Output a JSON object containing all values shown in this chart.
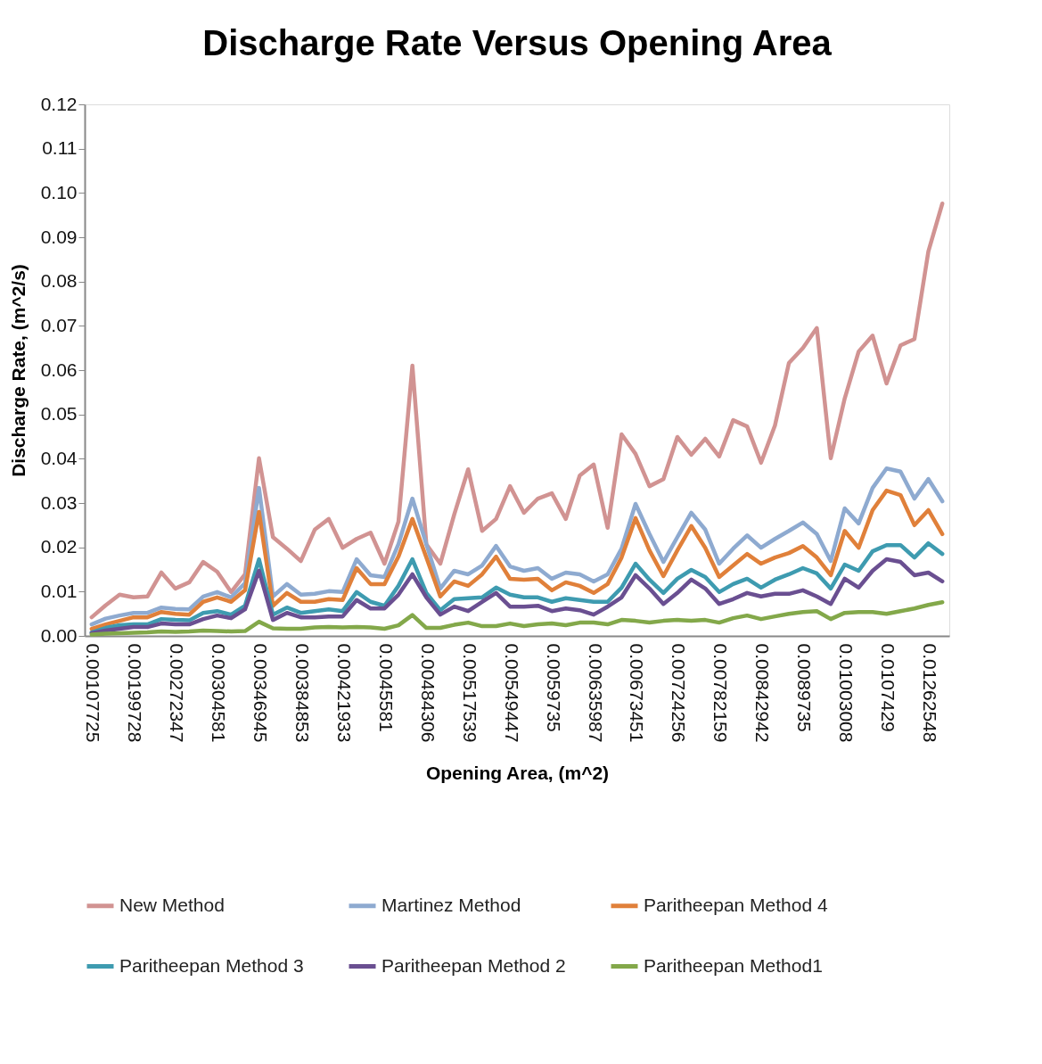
{
  "chart_data": {
    "type": "line",
    "title": "Discharge Rate Versus Opening Area",
    "xlabel": "Opening Area, (m^2)",
    "ylabel": "Discharge Rate, (m^2/s)",
    "categories": [
      "0.00107725",
      null,
      null,
      "0.00199728",
      null,
      null,
      "0.00272347",
      null,
      null,
      "0.00304581",
      null,
      null,
      "0.00346945",
      null,
      null,
      "0.00384853",
      null,
      null,
      "0.00421933",
      null,
      null,
      "0.0045581",
      null,
      null,
      "0.00484306",
      null,
      null,
      "0.00517539",
      null,
      null,
      "0.00549447",
      null,
      null,
      "0.0059735",
      null,
      null,
      "0.00635987",
      null,
      null,
      "0.00673451",
      null,
      null,
      "0.00724256",
      null,
      null,
      "0.00782159",
      null,
      null,
      "0.00842942",
      null,
      null,
      "0.0089735",
      null,
      null,
      "0.01003008",
      null,
      null,
      "0.0107429",
      null,
      null,
      "0.01262548",
      null
    ],
    "series": [
      {
        "name": "New Method",
        "color": "#d19392",
        "values": [
          0.0042,
          0.0069,
          0.0093,
          0.0087,
          0.0089,
          0.0143,
          0.0107,
          0.0121,
          0.0167,
          0.0145,
          0.0099,
          0.0139,
          0.0401,
          0.0223,
          0.0197,
          0.0169,
          0.024,
          0.0264,
          0.0199,
          0.0219,
          0.0233,
          0.0163,
          0.0258,
          0.061,
          0.0207,
          0.0163,
          0.0274,
          0.0376,
          0.0237,
          0.0264,
          0.0338,
          0.0278,
          0.031,
          0.0322,
          0.0264,
          0.0362,
          0.0387,
          0.0244,
          0.0455,
          0.0411,
          0.0338,
          0.0354,
          0.0449,
          0.0409,
          0.0445,
          0.0405,
          0.0487,
          0.0473,
          0.0391,
          0.0475,
          0.0616,
          0.065,
          0.0695,
          0.0401,
          0.0536,
          0.0642,
          0.0678,
          0.057,
          0.0656,
          0.067,
          0.0868,
          0.0976
        ]
      },
      {
        "name": "Martinez Method",
        "color": "#8eaad0",
        "values": [
          0.0026,
          0.0039,
          0.0046,
          0.0052,
          0.0052,
          0.0064,
          0.0061,
          0.006,
          0.0089,
          0.0099,
          0.0087,
          0.0119,
          0.0334,
          0.0089,
          0.0117,
          0.0093,
          0.0095,
          0.0101,
          0.0099,
          0.0173,
          0.0137,
          0.0133,
          0.0207,
          0.031,
          0.0207,
          0.0107,
          0.0147,
          0.0139,
          0.0159,
          0.0203,
          0.0157,
          0.0147,
          0.0153,
          0.0129,
          0.0143,
          0.0139,
          0.0123,
          0.0139,
          0.0197,
          0.0298,
          0.023,
          0.0167,
          0.0223,
          0.0278,
          0.024,
          0.0163,
          0.0197,
          0.0227,
          0.0199,
          0.0219,
          0.0237,
          0.0256,
          0.023,
          0.0169,
          0.0288,
          0.0254,
          0.0334,
          0.0378,
          0.0371,
          0.031,
          0.0354,
          0.0304
        ]
      },
      {
        "name": "Paritheepan Method 4",
        "color": "#e0803a",
        "values": [
          0.0016,
          0.0026,
          0.0034,
          0.0042,
          0.0042,
          0.0054,
          0.005,
          0.0048,
          0.0077,
          0.0087,
          0.0077,
          0.0103,
          0.028,
          0.0068,
          0.0097,
          0.0077,
          0.0077,
          0.0083,
          0.0081,
          0.0153,
          0.0117,
          0.0117,
          0.0179,
          0.0264,
          0.0177,
          0.0089,
          0.0123,
          0.0113,
          0.0139,
          0.0179,
          0.0129,
          0.0127,
          0.0129,
          0.0103,
          0.0121,
          0.0113,
          0.0097,
          0.0117,
          0.0177,
          0.0266,
          0.0193,
          0.0135,
          0.0193,
          0.0248,
          0.0199,
          0.0133,
          0.0159,
          0.0185,
          0.0163,
          0.0177,
          0.0187,
          0.0203,
          0.0177,
          0.0137,
          0.0237,
          0.0199,
          0.0284,
          0.0328,
          0.0318,
          0.025,
          0.0284,
          0.023
        ]
      },
      {
        "name": "Paritheepan Method 3",
        "color": "#3e9bb0",
        "values": [
          0.0008,
          0.0018,
          0.0024,
          0.0026,
          0.0026,
          0.0038,
          0.0036,
          0.0035,
          0.0052,
          0.0056,
          0.0048,
          0.0068,
          0.0173,
          0.0048,
          0.0064,
          0.0052,
          0.0056,
          0.006,
          0.0056,
          0.0099,
          0.0077,
          0.0068,
          0.0113,
          0.0173,
          0.0097,
          0.0058,
          0.0083,
          0.0085,
          0.0087,
          0.0109,
          0.0093,
          0.0087,
          0.0087,
          0.0077,
          0.0085,
          0.0081,
          0.0077,
          0.0077,
          0.0109,
          0.0163,
          0.0127,
          0.0097,
          0.0129,
          0.0149,
          0.0133,
          0.0099,
          0.0117,
          0.0129,
          0.0109,
          0.0127,
          0.0139,
          0.0153,
          0.0141,
          0.0107,
          0.0161,
          0.0147,
          0.0191,
          0.0205,
          0.0205,
          0.0177,
          0.0209,
          0.0185
        ]
      },
      {
        "name": "Paritheepan Method 2",
        "color": "#6a4f91",
        "values": [
          0.0006,
          0.0012,
          0.0016,
          0.002,
          0.002,
          0.0028,
          0.0026,
          0.0026,
          0.0038,
          0.0046,
          0.004,
          0.006,
          0.0147,
          0.0036,
          0.0052,
          0.0042,
          0.0042,
          0.0044,
          0.0044,
          0.0081,
          0.0062,
          0.0062,
          0.0093,
          0.0139,
          0.0087,
          0.0048,
          0.0066,
          0.0056,
          0.0077,
          0.0097,
          0.0066,
          0.0066,
          0.0068,
          0.0056,
          0.0062,
          0.0058,
          0.0048,
          0.0066,
          0.0087,
          0.0137,
          0.0107,
          0.0072,
          0.0097,
          0.0127,
          0.0107,
          0.0072,
          0.0083,
          0.0097,
          0.0089,
          0.0095,
          0.0095,
          0.0103,
          0.0089,
          0.0072,
          0.0129,
          0.0109,
          0.0147,
          0.0173,
          0.0167,
          0.0137,
          0.0143,
          0.0123
        ]
      },
      {
        "name": "Paritheepan Method1",
        "color": "#83a84a",
        "values": [
          0.0003,
          0.0005,
          0.0006,
          0.0007,
          0.0008,
          0.001,
          0.0009,
          0.001,
          0.0012,
          0.0011,
          0.001,
          0.0011,
          0.0032,
          0.0017,
          0.0016,
          0.0016,
          0.0019,
          0.002,
          0.0019,
          0.002,
          0.0019,
          0.0016,
          0.0024,
          0.0047,
          0.0018,
          0.0018,
          0.0025,
          0.003,
          0.0022,
          0.0022,
          0.0028,
          0.0022,
          0.0026,
          0.0028,
          0.0024,
          0.003,
          0.003,
          0.0026,
          0.0036,
          0.0034,
          0.003,
          0.0034,
          0.0036,
          0.0034,
          0.0036,
          0.003,
          0.004,
          0.0046,
          0.0038,
          0.0044,
          0.005,
          0.0054,
          0.0056,
          0.0038,
          0.0052,
          0.0054,
          0.0054,
          0.005,
          0.0056,
          0.0062,
          0.007,
          0.0076
        ]
      }
    ],
    "ylim": [
      0,
      0.12
    ],
    "yticks": [
      {
        "value": 0,
        "label": "0.00"
      },
      {
        "value": 0.01,
        "label": "0.01"
      },
      {
        "value": 0.02,
        "label": "0.02"
      },
      {
        "value": 0.03,
        "label": "0.03"
      },
      {
        "value": 0.04,
        "label": "0.04"
      },
      {
        "value": 0.05,
        "label": "0.05"
      },
      {
        "value": 0.06,
        "label": "0.06"
      },
      {
        "value": 0.07,
        "label": "0.07"
      },
      {
        "value": 0.08,
        "label": "0.08"
      },
      {
        "value": 0.09,
        "label": "0.09"
      },
      {
        "value": 0.1,
        "label": "0.10"
      },
      {
        "value": 0.11,
        "label": "0.11"
      },
      {
        "value": 0.12,
        "label": "0.12"
      }
    ],
    "grid": false,
    "legend": "bottom"
  }
}
